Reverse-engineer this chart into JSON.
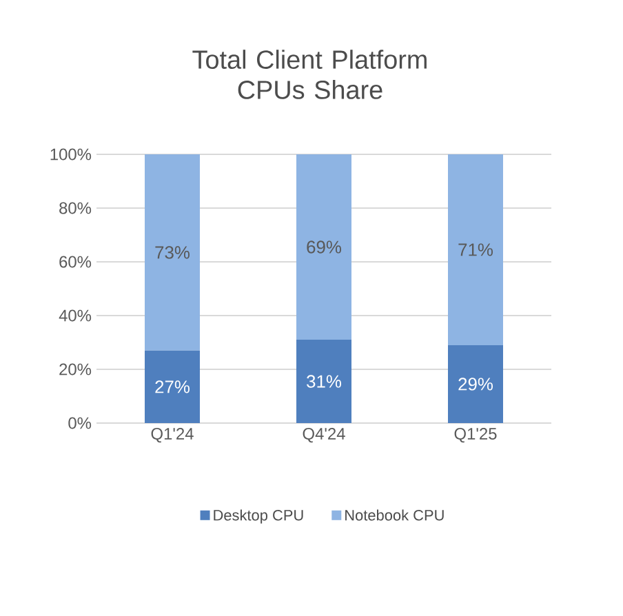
{
  "chart_data": {
    "type": "bar",
    "stacked": true,
    "title": "Total Client Platform CPUs Share",
    "categories": [
      "Q1'24",
      "Q4'24",
      "Q1'25"
    ],
    "series": [
      {
        "name": "Desktop CPU",
        "color": "#4f7fbe",
        "values": [
          27,
          31,
          29
        ],
        "value_labels": [
          "27%",
          "31%",
          "29%"
        ]
      },
      {
        "name": "Notebook CPU",
        "color": "#8eb4e3",
        "values": [
          73,
          69,
          71
        ],
        "value_labels": [
          "73%",
          "69%",
          "71%"
        ]
      }
    ],
    "ylim": [
      0,
      100
    ],
    "yticks": [
      {
        "value": 0,
        "label": "0%"
      },
      {
        "value": 20,
        "label": "20%"
      },
      {
        "value": 40,
        "label": "40%"
      },
      {
        "value": 60,
        "label": "60%"
      },
      {
        "value": 80,
        "label": "80%"
      },
      {
        "value": 100,
        "label": "100%"
      }
    ],
    "grid": "y",
    "legend": "bottom"
  }
}
